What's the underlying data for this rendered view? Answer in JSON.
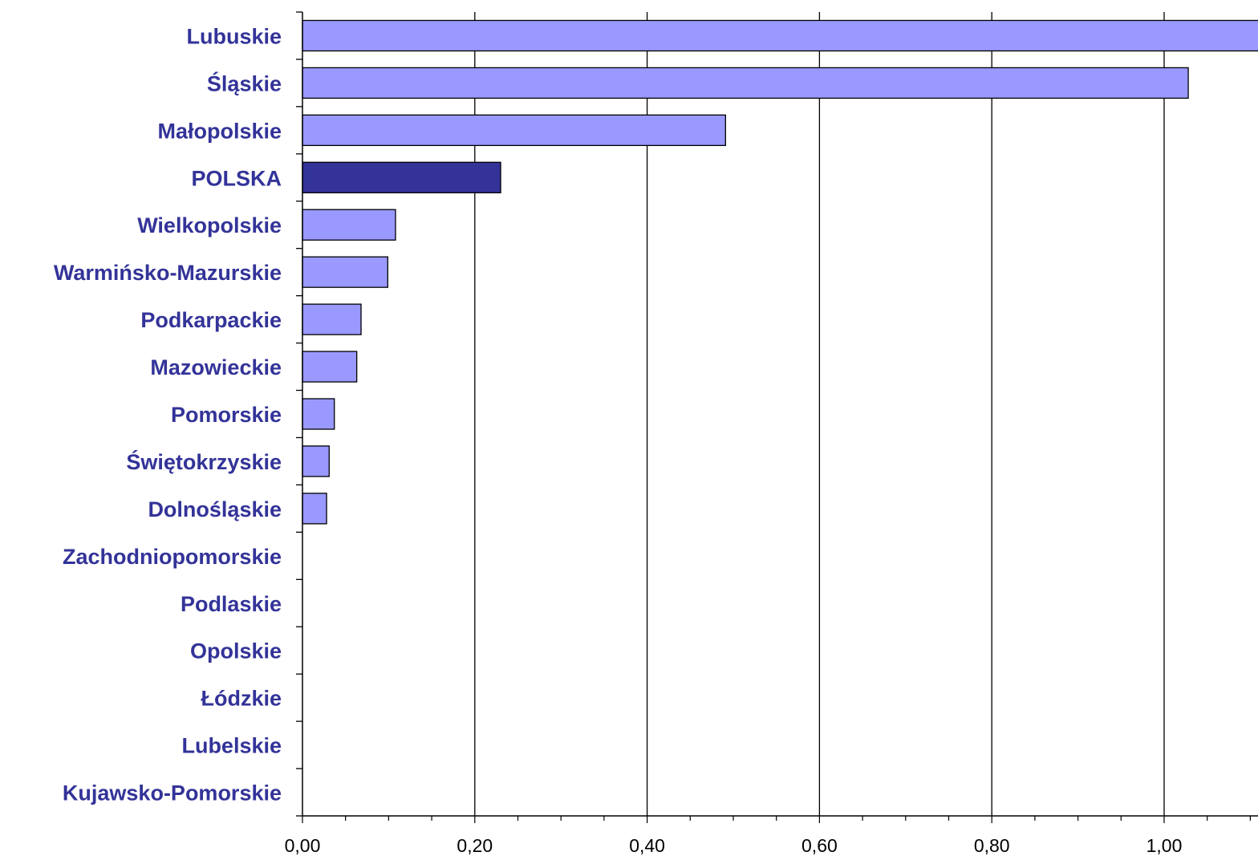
{
  "chart_data": {
    "type": "bar",
    "orientation": "horizontal",
    "categories": [
      "Lubuskie",
      "Śląskie",
      "Małopolskie",
      "POLSKA",
      "Wielkopolskie",
      "Warmińsko-Mazurskie",
      "Podkarpackie",
      "Mazowieckie",
      "Pomorskie",
      "Świętokrzyskie",
      "Dolnośląskie",
      "Zachodniopomorskie",
      "Podlaskie",
      "Opolskie",
      "Łódzkie",
      "Lubelskie",
      "Kujawsko-Pomorskie"
    ],
    "values": [
      1.15,
      1.028,
      0.491,
      0.23,
      0.108,
      0.099,
      0.068,
      0.063,
      0.037,
      0.031,
      0.028,
      0,
      0,
      0,
      0,
      0,
      0
    ],
    "highlight_category": "POLSKA",
    "xlim": [
      0,
      1.1
    ],
    "xticks": [
      0,
      0.2,
      0.4,
      0.6,
      0.8,
      1.0
    ],
    "xtick_labels": [
      "0,00",
      "0,20",
      "0,40",
      "0,60",
      "0,80",
      "1,00"
    ],
    "grid": "vertical major gridlines",
    "colors": {
      "bar": "#9999ff",
      "highlight_bar": "#333399",
      "bar_edge": "#000000",
      "label": "#333399",
      "grid": "#000000"
    },
    "title": "",
    "xlabel": "",
    "ylabel": ""
  }
}
